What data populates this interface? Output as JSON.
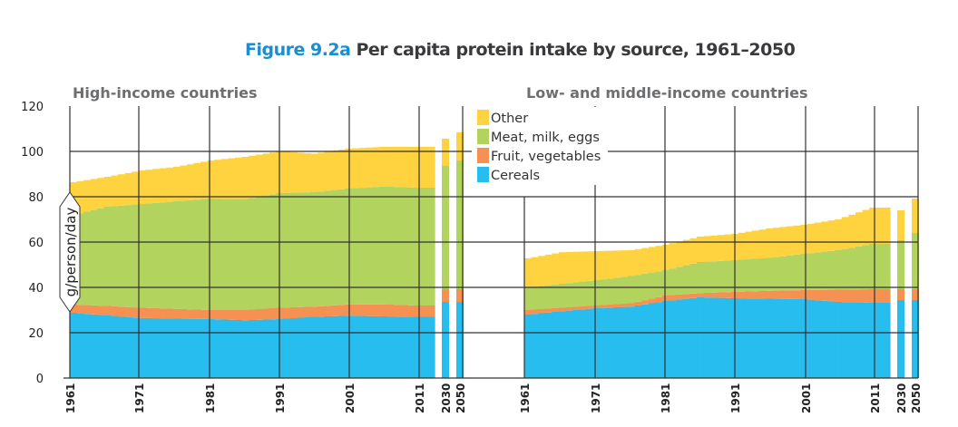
{
  "figure_number": "Figure 9.2a",
  "figure_title": "Per capita protein intake by source, 1961–2050",
  "colors": {
    "Cereals": "#27bdee",
    "Fruit, vegetables": "#f59152",
    "Meat, milk, eggs": "#b3d35f",
    "Other": "#fed33f"
  },
  "chart_data": [
    {
      "type": "area",
      "stacked": true,
      "title": "High-income countries",
      "ylabel": "g/person/day",
      "ylim": [
        0,
        120
      ],
      "yticks": [
        0,
        20,
        40,
        60,
        80,
        100,
        120
      ],
      "xticks": [
        "1961",
        "1971",
        "1981",
        "1991",
        "2001",
        "2011",
        "2030",
        "2050"
      ],
      "grid": true,
      "legend": "top-right",
      "x": [
        1961,
        1966,
        1971,
        1976,
        1981,
        1986,
        1991,
        1996,
        2001,
        2006,
        2011
      ],
      "series": [
        {
          "name": "Cereals",
          "values": [
            28.8,
            27.6,
            26.5,
            26.2,
            26,
            25.5,
            26,
            27,
            27.5,
            27.2,
            27
          ]
        },
        {
          "name": "Fruit, vegetables",
          "values": [
            3.6,
            4.2,
            4.5,
            4.3,
            4,
            4.5,
            5,
            4.5,
            5,
            5.3,
            5
          ]
        },
        {
          "name": "Meat, milk, eggs",
          "values": [
            39.6,
            43.8,
            45.8,
            47.5,
            49.2,
            49,
            50.6,
            50.5,
            51.1,
            52,
            52
          ]
        },
        {
          "name": "Other",
          "values": [
            14.4,
            13.2,
            14.8,
            15.2,
            16.8,
            18.6,
            18.4,
            17,
            17.6,
            17.5,
            18
          ]
        }
      ],
      "projections": {
        "x": [
          "2030",
          "2050"
        ],
        "Cereals": [
          33.6,
          33.6
        ],
        "Fruit, vegetables": [
          5.6,
          5.6
        ],
        "Meat, milk, eggs": [
          54.4,
          56.8
        ],
        "Other": [
          12,
          12.4
        ]
      }
    },
    {
      "type": "area",
      "stacked": true,
      "title": "Low- and middle-income countries",
      "ylim": [
        0,
        120
      ],
      "xticks": [
        "1961",
        "1971",
        "1981",
        "1991",
        "2001",
        "2011",
        "2030",
        "2050"
      ],
      "grid": true,
      "x": [
        1961,
        1966,
        1971,
        1976,
        1981,
        1986,
        1991,
        1996,
        2001,
        2006,
        2011
      ],
      "series": [
        {
          "name": "Cereals",
          "values": [
            28,
            29.5,
            30.8,
            31.5,
            34,
            35.6,
            35.2,
            35,
            34.8,
            33.6,
            33.2
          ]
        },
        {
          "name": "Fruit, vegetables",
          "values": [
            2,
            1.5,
            1.2,
            1.5,
            2.4,
            1.9,
            2.8,
            3.5,
            4,
            5.4,
            6
          ]
        },
        {
          "name": "Meat, milk, eggs",
          "values": [
            10,
            10.6,
            11.2,
            12,
            11.2,
            13.7,
            14,
            14.5,
            16,
            17.4,
            20
          ]
        },
        {
          "name": "Other",
          "values": [
            12.8,
            13.9,
            12.8,
            11.4,
            11.2,
            11.2,
            11.6,
            13,
            12.8,
            13.6,
            16
          ]
        }
      ],
      "projections": {
        "x": [
          "2030",
          "2050"
        ],
        "Cereals": [
          34.4,
          34.4
        ],
        "Fruit, vegetables": [
          4.8,
          4.8
        ],
        "Meat, milk, eggs": [
          21.6,
          24.8
        ],
        "Other": [
          13.2,
          15.2
        ]
      }
    }
  ],
  "legend": [
    "Other",
    "Meat, milk, eggs",
    "Fruit, vegetables",
    "Cereals"
  ]
}
